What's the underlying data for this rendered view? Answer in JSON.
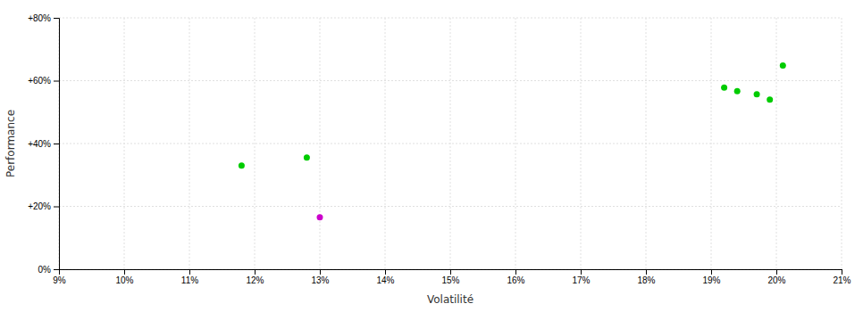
{
  "chart_data": {
    "type": "scatter",
    "xlabel": "Volatilité",
    "ylabel": "Performance",
    "xlim": [
      0.09,
      0.21
    ],
    "ylim": [
      0.0,
      0.8
    ],
    "xticks": [
      {
        "value": 0.09,
        "label": "9%"
      },
      {
        "value": 0.1,
        "label": "10%"
      },
      {
        "value": 0.11,
        "label": "11%"
      },
      {
        "value": 0.12,
        "label": "12%"
      },
      {
        "value": 0.13,
        "label": "13%"
      },
      {
        "value": 0.14,
        "label": "14%"
      },
      {
        "value": 0.15,
        "label": "15%"
      },
      {
        "value": 0.16,
        "label": "16%"
      },
      {
        "value": 0.17,
        "label": "17%"
      },
      {
        "value": 0.18,
        "label": "18%"
      },
      {
        "value": 0.19,
        "label": "19%"
      },
      {
        "value": 0.2,
        "label": "20%"
      },
      {
        "value": 0.21,
        "label": "21%"
      }
    ],
    "yticks": [
      {
        "value": 0.0,
        "label": "0%"
      },
      {
        "value": 0.2,
        "label": "+20%"
      },
      {
        "value": 0.4,
        "label": "+40%"
      },
      {
        "value": 0.6,
        "label": "+60%"
      },
      {
        "value": 0.8,
        "label": "+80%"
      }
    ],
    "grid": true,
    "series": [
      {
        "color": "#00cc00",
        "x": [
          0.118,
          0.128,
          0.192,
          0.194,
          0.197,
          0.199,
          0.201
        ],
        "values": [
          0.33,
          0.355,
          0.578,
          0.567,
          0.557,
          0.54,
          0.648
        ]
      },
      {
        "color": "#cc00cc",
        "x": [
          0.13
        ],
        "values": [
          0.165
        ]
      }
    ]
  }
}
